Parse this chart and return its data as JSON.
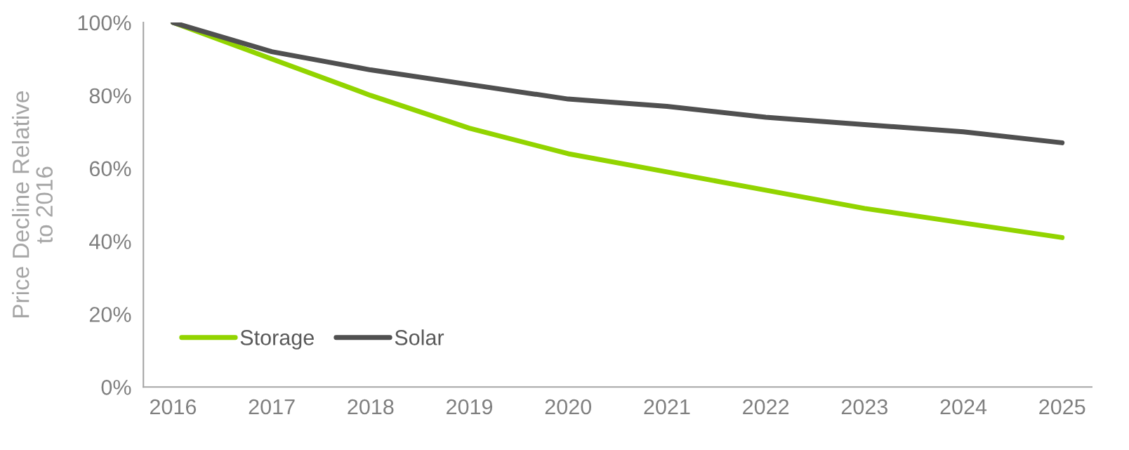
{
  "chart_data": {
    "type": "line",
    "ylabel": "Price Decline Relative\nto 2016",
    "categories": [
      "2016",
      "2017",
      "2018",
      "2019",
      "2020",
      "2021",
      "2022",
      "2023",
      "2024",
      "2025"
    ],
    "series": [
      {
        "name": "Storage",
        "color": "#92d400",
        "values": [
          100,
          90,
          80,
          71,
          64,
          59,
          54,
          49,
          45,
          41
        ]
      },
      {
        "name": "Solar",
        "color": "#505050",
        "values": [
          100,
          92,
          87,
          83,
          79,
          77,
          74,
          72,
          70,
          67
        ]
      }
    ],
    "ylim": [
      0,
      100
    ],
    "yticks": [
      {
        "value": 0,
        "label": "0%"
      },
      {
        "value": 20,
        "label": "20%"
      },
      {
        "value": 40,
        "label": "40%"
      },
      {
        "value": 60,
        "label": "60%"
      },
      {
        "value": 80,
        "label": "80%"
      },
      {
        "value": 100,
        "label": "100%"
      }
    ],
    "grid": false,
    "legend": "bottom left",
    "marker": "none",
    "line_style": "solid"
  }
}
